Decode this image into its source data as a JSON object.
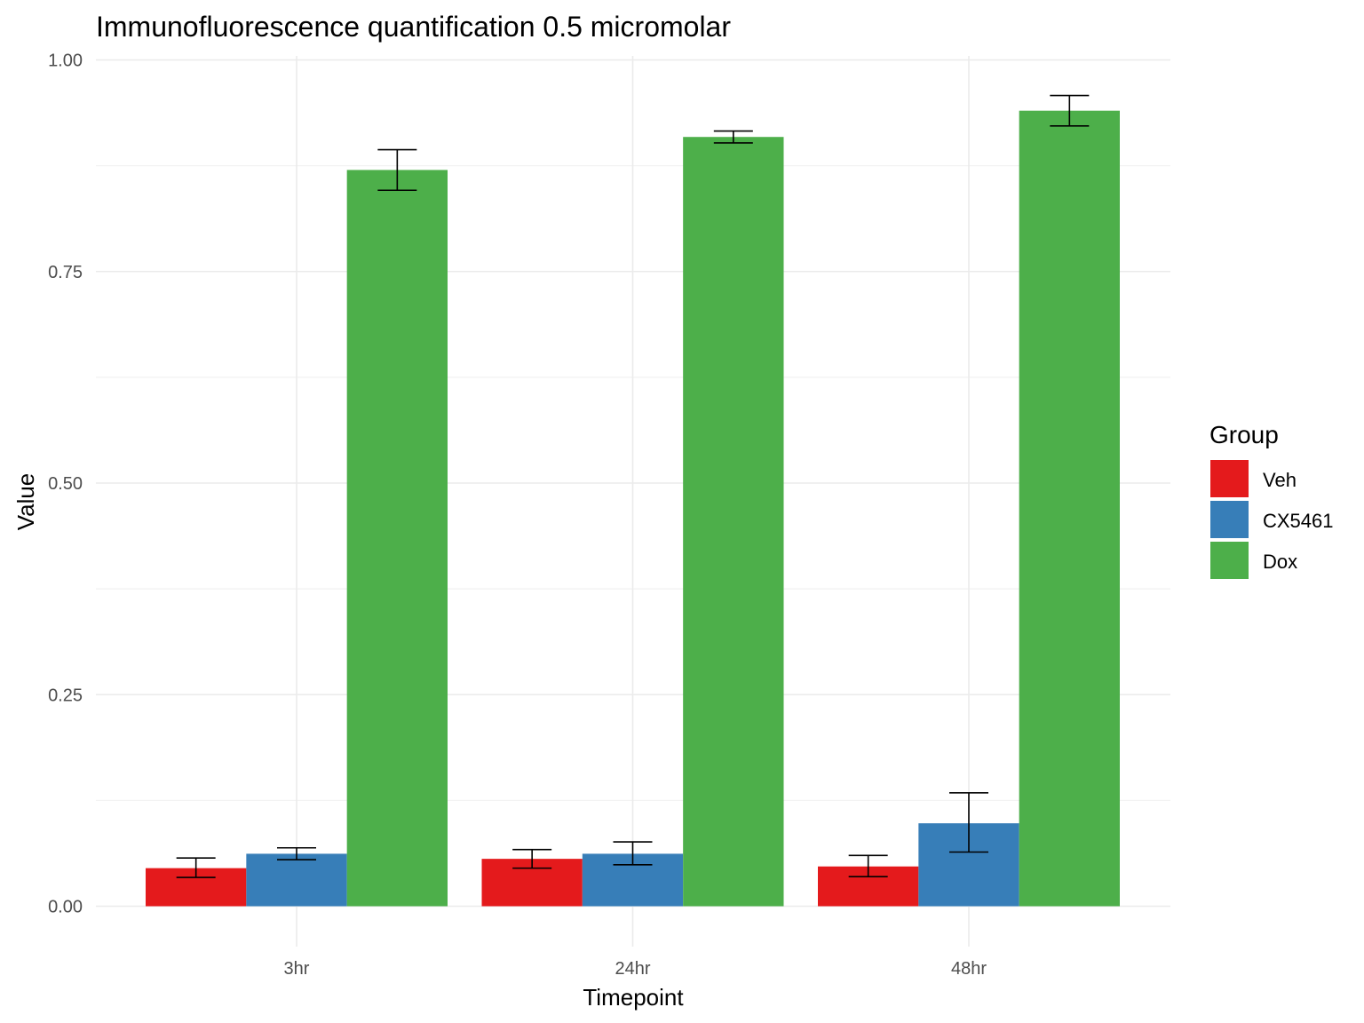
{
  "chart_data": {
    "type": "bar",
    "title": "Immunofluorescence quantification 0.5 micromolar",
    "xlabel": "Timepoint",
    "ylabel": "Value",
    "categories": [
      "3hr",
      "24hr",
      "48hr"
    ],
    "ylim": [
      -0.04,
      1.02
    ],
    "yticks": [
      0.0,
      0.25,
      0.5,
      0.75,
      1.0
    ],
    "ytick_labels": [
      "0.00",
      "0.25",
      "0.50",
      "0.75",
      "1.00"
    ],
    "grid": true,
    "legend": {
      "title": "Group",
      "position": "right"
    },
    "series": [
      {
        "name": "Veh",
        "color": "#E41A1C",
        "values": [
          0.045,
          0.056,
          0.047
        ],
        "err_low": [
          0.034,
          0.045,
          0.035
        ],
        "err_high": [
          0.057,
          0.067,
          0.06
        ]
      },
      {
        "name": "CX5461",
        "color": "#377EB8",
        "values": [
          0.062,
          0.062,
          0.098
        ],
        "err_low": [
          0.055,
          0.049,
          0.064
        ],
        "err_high": [
          0.069,
          0.076,
          0.134
        ]
      },
      {
        "name": "Dox",
        "color": "#4DAF4A",
        "values": [
          0.87,
          0.909,
          0.94
        ],
        "err_low": [
          0.846,
          0.902,
          0.922
        ],
        "err_high": [
          0.894,
          0.916,
          0.958
        ]
      }
    ]
  }
}
